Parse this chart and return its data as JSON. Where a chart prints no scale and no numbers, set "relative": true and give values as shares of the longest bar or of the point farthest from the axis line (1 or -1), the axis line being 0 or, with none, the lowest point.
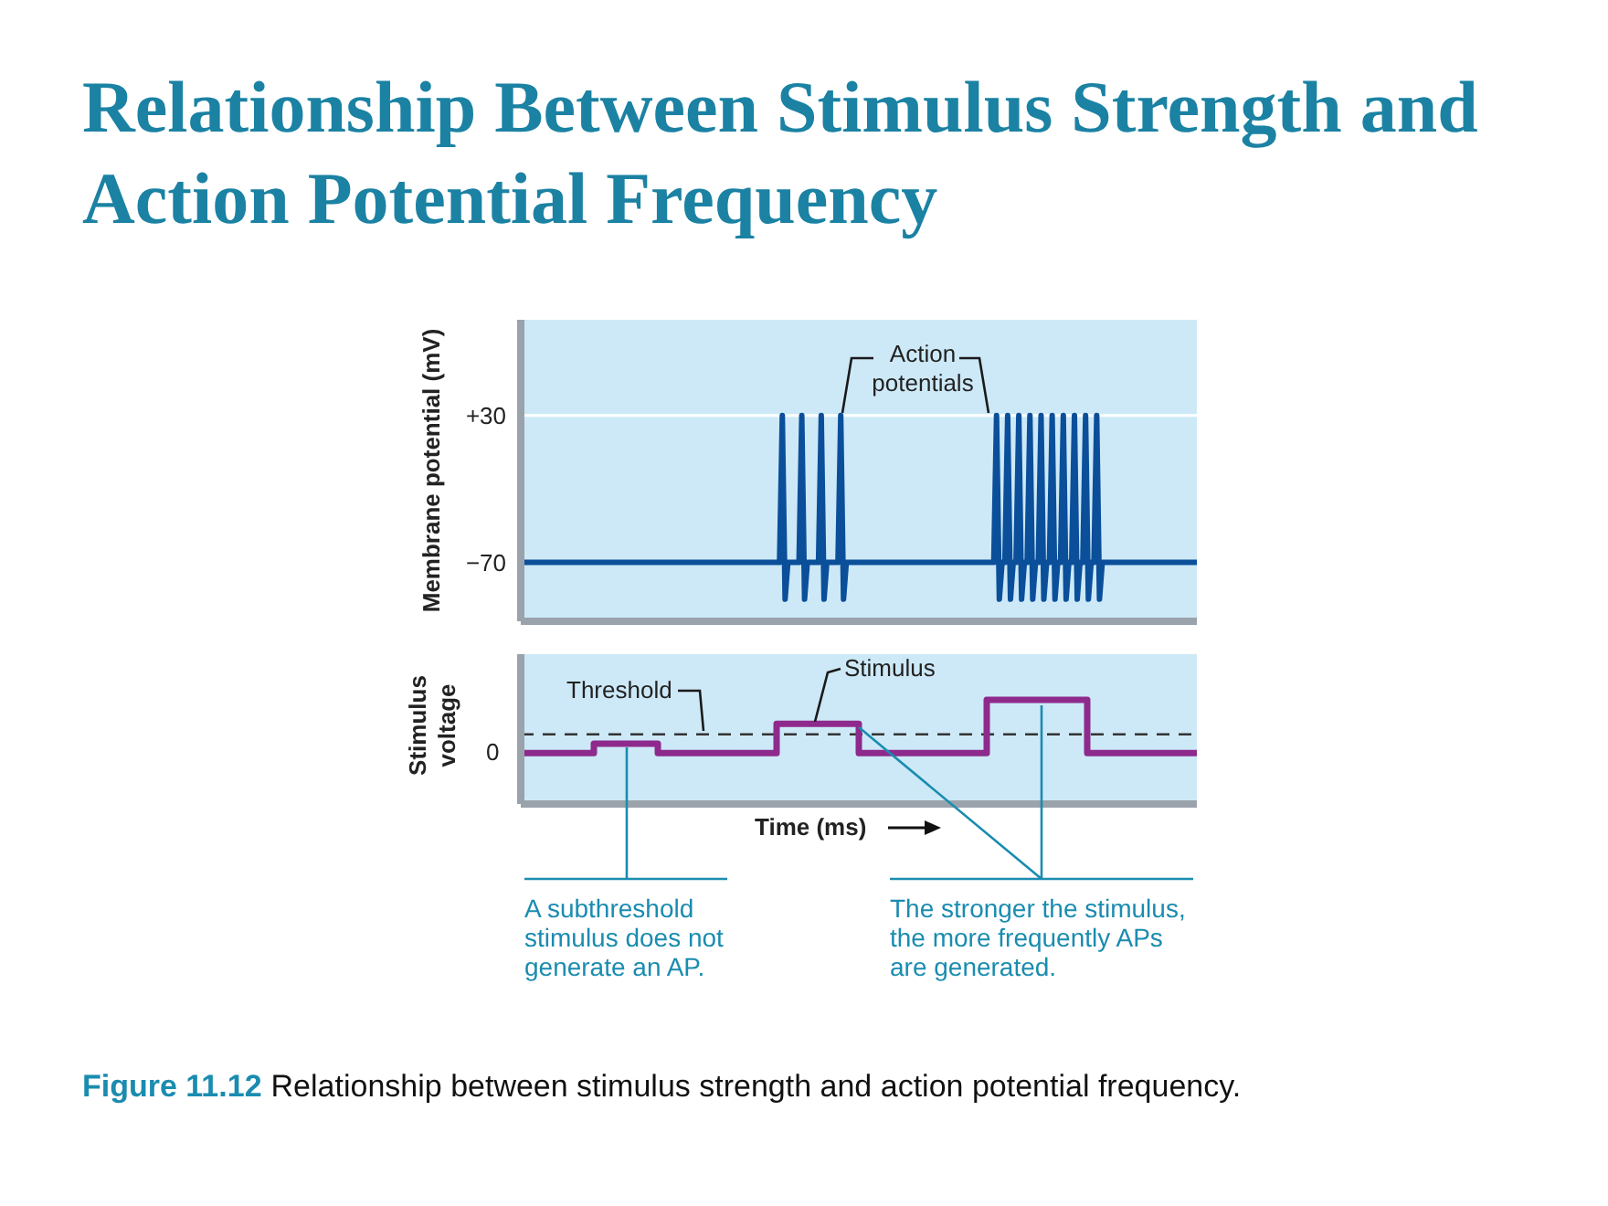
{
  "chart_data": [
    {
      "type": "line",
      "title": "Relationship Between Stimulus Strength and Action Potential Frequency",
      "ylabel": "Membrane potential (mV)",
      "annotations": [
        "Action potentials"
      ],
      "categories": [
        null,
        null,
        null,
        null,
        null,
        null,
        null,
        null,
        null,
        null,
        null,
        null,
        null,
        null,
        null,
        null,
        null,
        null,
        null,
        null,
        null,
        null,
        null,
        null,
        null,
        null,
        null,
        null,
        null,
        null,
        null,
        null,
        null,
        null,
        null,
        null,
        null,
        null,
        null,
        null,
        null,
        null,
        null,
        null,
        null,
        null,
        null,
        null,
        null,
        null,
        null,
        null,
        null,
        null,
        null,
        null,
        null,
        null,
        null,
        null,
        null,
        null,
        null,
        null,
        null,
        null,
        null,
        null,
        null,
        null,
        null,
        null,
        null,
        null,
        null,
        null,
        null,
        null,
        null,
        null,
        null,
        null,
        null,
        null,
        null,
        null,
        null,
        null,
        null,
        null,
        null,
        null,
        null,
        null,
        null,
        null,
        null,
        null,
        null,
        null,
        null,
        null,
        null,
        null,
        null,
        null,
        null,
        null,
        null,
        null,
        null,
        null,
        null,
        null,
        null,
        null,
        null,
        null,
        null,
        null,
        null,
        null,
        null,
        null,
        null,
        null,
        null,
        null,
        null,
        null,
        null,
        null,
        null,
        null,
        null,
        null,
        null,
        null,
        null,
        null,
        null,
        null,
        null,
        null,
        null,
        null,
        null,
        null,
        null,
        null,
        null,
        null,
        null,
        null,
        null,
        null,
        null,
        null,
        null,
        null,
        null,
        null,
        null,
        null,
        null,
        null,
        null,
        null,
        null,
        null,
        null,
        null,
        null,
        null,
        null,
        null,
        null,
        null,
        null,
        null,
        null,
        null,
        null,
        null,
        null,
        null,
        null,
        null,
        null,
        null,
        null,
        null,
        null,
        null,
        null,
        null,
        null,
        null,
        null,
        null,
        null,
        null,
        null,
        null,
        null,
        null,
        null,
        null,
        null,
        null,
        null,
        null,
        null,
        null,
        null,
        null,
        null,
        null,
        null,
        null,
        null,
        null,
        null,
        null,
        null,
        null,
        null,
        null,
        null,
        null,
        null,
        null,
        null,
        null,
        null,
        null,
        null,
        null,
        null,
        null,
        null,
        null,
        null,
        null
      ],
      "values": [
        -70,
        -70,
        -70,
        -70,
        -70,
        -70,
        -70,
        -70,
        -70,
        -70,
        -70,
        -70,
        -70,
        -70,
        -70,
        -70,
        -70,
        -70,
        -70,
        -70,
        -70,
        -70,
        -70,
        -70,
        -70,
        -70,
        -70,
        -70,
        -70,
        -70,
        -70,
        -70,
        -70,
        -70,
        -70,
        -70,
        -70,
        -70,
        -70,
        -70,
        -70,
        -70,
        -70,
        -70,
        -70,
        -70,
        -70,
        -70,
        -70,
        -70,
        -70,
        -70,
        -70,
        -70,
        -70,
        -70,
        -70,
        -70,
        -70,
        -70,
        -70,
        -70,
        -70,
        -70,
        -70,
        -70,
        -70,
        -70,
        -70,
        -70,
        -70,
        -70,
        -70,
        -70,
        -70,
        -70,
        -70,
        -70,
        -70,
        -70,
        -70,
        -70,
        -70,
        -70,
        -70,
        -70,
        -70,
        -70,
        -70,
        -70,
        -70,
        -70,
        -70,
        -70,
        30,
        -95,
        -70,
        -70,
        -70,
        -70,
        -70,
        30,
        -95,
        -70,
        -70,
        -70,
        -70,
        -70,
        30,
        -95,
        -70,
        -70,
        -70,
        -70,
        -70,
        30,
        -95,
        -70,
        -70,
        -70,
        -70,
        -70,
        -70,
        -70,
        -70,
        -70,
        -70,
        -70,
        -70,
        -70,
        -70,
        -70,
        -70,
        -70,
        -70,
        -70,
        -70,
        -70,
        -70,
        -70,
        -70,
        -70,
        -70,
        -70,
        -70,
        -70,
        -70,
        -70,
        -70,
        -70,
        -70,
        -70,
        -70,
        -70,
        -70,
        -70,
        -70,
        -70,
        -70,
        -70,
        -70,
        -70,
        -70,
        -70,
        -70,
        -70,
        -70,
        -70,
        -70,
        -70,
        -70,
        30,
        -95,
        -70,
        -70,
        30,
        -95,
        -70,
        -70,
        30,
        -95,
        -70,
        -70,
        30,
        -95,
        -70,
        -70,
        30,
        -95,
        -70,
        -70,
        30,
        -95,
        -70,
        -70,
        30,
        -95,
        -70,
        -70,
        30,
        -95,
        -70,
        -70,
        30,
        -95,
        -70,
        -70,
        30,
        -95,
        -70,
        -70,
        -70,
        -70,
        -70,
        -70,
        -70,
        -70,
        -70,
        -70,
        -70,
        -70,
        -70,
        -70,
        -70,
        -70,
        -70,
        -70,
        -70,
        -70,
        -70,
        -70,
        -70,
        -70,
        -70,
        -70,
        -70,
        -70,
        -70,
        -70,
        -70,
        -70,
        -70,
        -70,
        -70
      ],
      "color": "#0b4f9a",
      "ylim": [
        -110,
        95
      ],
      "yticks": [
        {
          "value": 30,
          "label": "+30"
        },
        {
          "value": -70,
          "label": "−70"
        }
      ],
      "grid": "y"
    },
    {
      "type": "step",
      "relative": true,
      "xlabel": "Time (ms)",
      "ylabel": "Stimulus voltage",
      "annotations": [
        "0",
        "Stimulus",
        "A subthreshold stimulus does not generate an AP.",
        "The stronger the stimulus, the more frequently APs are generated.",
        "Figure 11.12",
        "Relationship between stimulus strength and action potential frequency."
      ],
      "categories": [
        null,
        null,
        null,
        null,
        null,
        null,
        null,
        null,
        null,
        null,
        null,
        null,
        null,
        null,
        null,
        null,
        null,
        null,
        null,
        null,
        null,
        null,
        null,
        null,
        null,
        null,
        null,
        null,
        null,
        null,
        null,
        null,
        null,
        null,
        null,
        null,
        null,
        null,
        null,
        null,
        null,
        null,
        null,
        null,
        null,
        null,
        null,
        null,
        null,
        null,
        null,
        null,
        null,
        null,
        null,
        null,
        null,
        null,
        null,
        null,
        null,
        null,
        null,
        null,
        null,
        null,
        null,
        null,
        null,
        null,
        null,
        null,
        null,
        null,
        null
      ],
      "values": [
        0.49,
        0.49,
        0.49,
        0.49,
        0.49,
        0.49,
        0.49,
        0.49,
        0.58,
        0.58,
        0.58,
        0.58,
        0.58,
        0.58,
        0.58,
        0.49,
        0.49,
        0.49,
        0.49,
        0.49,
        0.49,
        0.49,
        0.49,
        0.49,
        0.49,
        0.49,
        0.49,
        0.49,
        0.77,
        0.77,
        0.77,
        0.77,
        0.77,
        0.77,
        0.77,
        0.77,
        0.77,
        0.49,
        0.49,
        0.49,
        0.49,
        0.49,
        0.49,
        0.49,
        0.49,
        0.49,
        0.49,
        0.49,
        0.49,
        0.49,
        0.49,
        1,
        1,
        1,
        1,
        1,
        1,
        1,
        1,
        1,
        1,
        1,
        0.49,
        0.49,
        0.49,
        0.49,
        0.49,
        0.49,
        0.49,
        0.49,
        0.49,
        0.49,
        0.49,
        0.49,
        0.49
      ],
      "color": "#8e2a8c",
      "ref_lines": [
        {
          "axis": "y",
          "value": 0.67,
          "label": "Threshold",
          "color": "#333333",
          "line_style": "dashed"
        }
      ]
    }
  ]
}
